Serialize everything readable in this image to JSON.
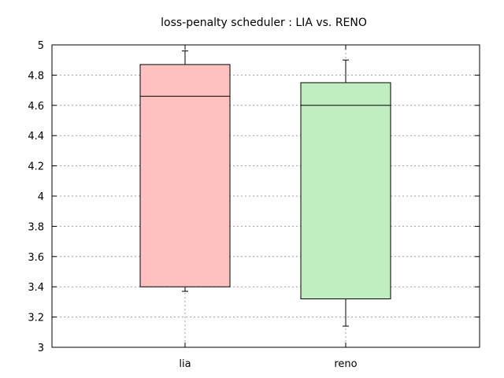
{
  "chart_data": {
    "type": "box",
    "title": "loss-penalty scheduler : LIA vs. RENO",
    "xlabel": "",
    "ylabel": "",
    "categories": [
      "lia",
      "reno"
    ],
    "ylim": [
      3,
      5
    ],
    "yticks": [
      3,
      3.2,
      3.4,
      3.6,
      3.8,
      4,
      4.2,
      4.4,
      4.6,
      4.8,
      5
    ],
    "ytick_labels": [
      "3",
      "3.2",
      "3.4",
      "3.6",
      "3.8",
      "4",
      "4.2",
      "4.4",
      "4.6",
      "4.8",
      "5"
    ],
    "grid": true,
    "boxes": [
      {
        "category": "lia",
        "min": 3.37,
        "q1": 3.4,
        "median": 4.66,
        "q3": 4.87,
        "max": 4.96,
        "fill": "#ffc0c0"
      },
      {
        "category": "reno",
        "min": 3.14,
        "q1": 3.32,
        "median": 4.6,
        "q3": 4.75,
        "max": 4.9,
        "fill": "#c0eec0"
      }
    ]
  }
}
